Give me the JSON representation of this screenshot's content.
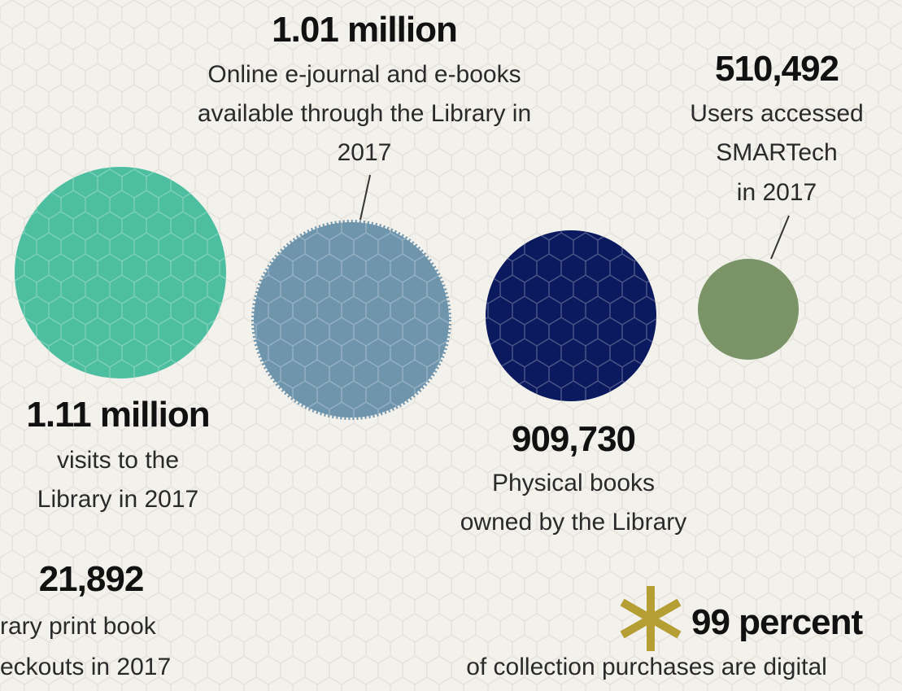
{
  "stats": [
    {
      "value": "1.01 million",
      "lines": [
        "Online e-journal and e-books",
        "available through the Library in",
        "2017"
      ]
    },
    {
      "value": "510,492",
      "lines": [
        "Users accessed",
        "SMARTech",
        "in 2017"
      ]
    },
    {
      "value": "1.11 million",
      "lines": [
        "visits to the",
        "Library in 2017"
      ]
    },
    {
      "value": "909,730",
      "lines": [
        "Physical books",
        "owned by the Library"
      ]
    },
    {
      "value": "21,892",
      "lines": [
        "rary print book",
        "eckouts in 2017"
      ]
    },
    {
      "value": "99 percent",
      "lines": [
        "of collection purchases are digital"
      ]
    }
  ]
}
